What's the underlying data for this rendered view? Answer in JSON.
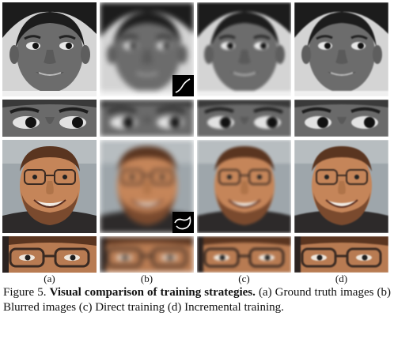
{
  "figure": {
    "sublabels": [
      "(a)",
      "(b)",
      "(c)",
      "(d)"
    ],
    "caption": {
      "number": "Figure 5.",
      "title": "Visual comparison of training strategies.",
      "text": "(a) Ground truth images (b) Blurred images (c) Direct training (d) Incremental training."
    }
  },
  "colors": {
    "girl_bg": "#d9d9d9",
    "girl_skin": "#6e6e6e",
    "girl_hair": "#1a1a1a",
    "man_bg": "#9aa3a8",
    "man_skin": "#c98a5e",
    "man_hair": "#5a3520",
    "man_beard": "#7a4a2e",
    "kernel_bg": "#000000",
    "kernel_line": "#ffffff"
  }
}
